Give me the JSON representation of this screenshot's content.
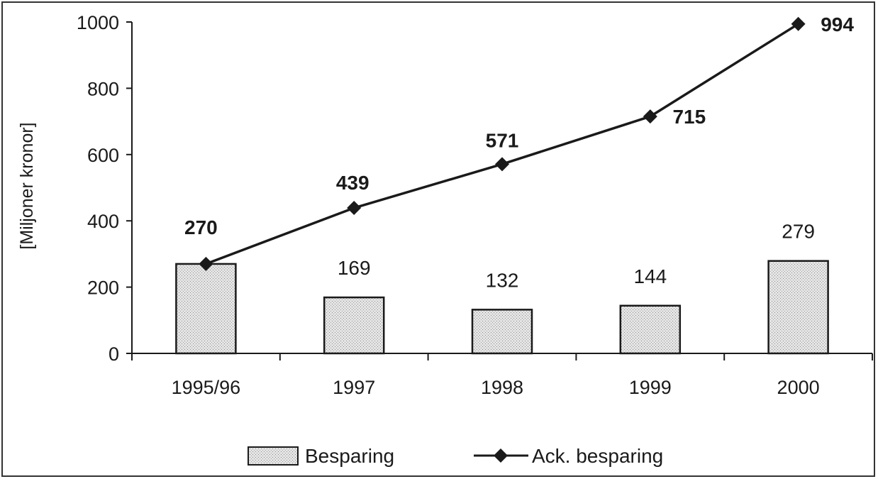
{
  "chart_data": {
    "type": "bar",
    "title": "",
    "xlabel": "",
    "ylabel": "[Miljoner kronor]",
    "ylim": [
      0,
      1000
    ],
    "yticks": [
      0,
      200,
      400,
      600,
      800,
      1000
    ],
    "categories": [
      "1995/96",
      "1997",
      "1998",
      "1999",
      "2000"
    ],
    "series": [
      {
        "name": "Besparing",
        "type": "bar",
        "values": [
          270,
          169,
          132,
          144,
          279
        ],
        "labels": [
          "270",
          "169",
          "132",
          "144",
          "279"
        ]
      },
      {
        "name": "Ack. besparing",
        "type": "line",
        "marker": "diamond",
        "values": [
          270,
          439,
          571,
          715,
          994
        ],
        "labels": [
          "",
          "439",
          "571",
          "715",
          "994"
        ]
      }
    ],
    "legend": {
      "position": "bottom"
    },
    "grid": false,
    "colors": {
      "bar_fill": "#e6e6e6",
      "stroke": "#1a1a1a"
    }
  }
}
